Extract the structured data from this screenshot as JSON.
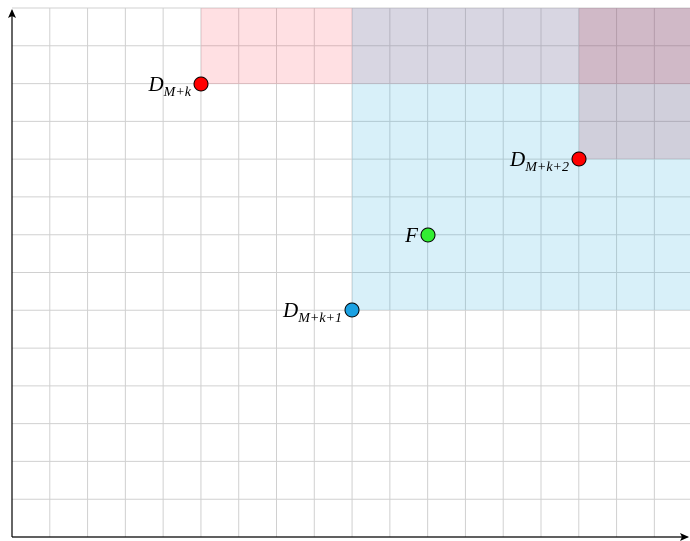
{
  "points": [
    {
      "label": "D",
      "subscript": "M+k"
    },
    {
      "label": "D",
      "subscript": "M+k+2"
    },
    {
      "label": "F"
    },
    {
      "label": "D",
      "subscript": "M+k+1"
    }
  ]
}
